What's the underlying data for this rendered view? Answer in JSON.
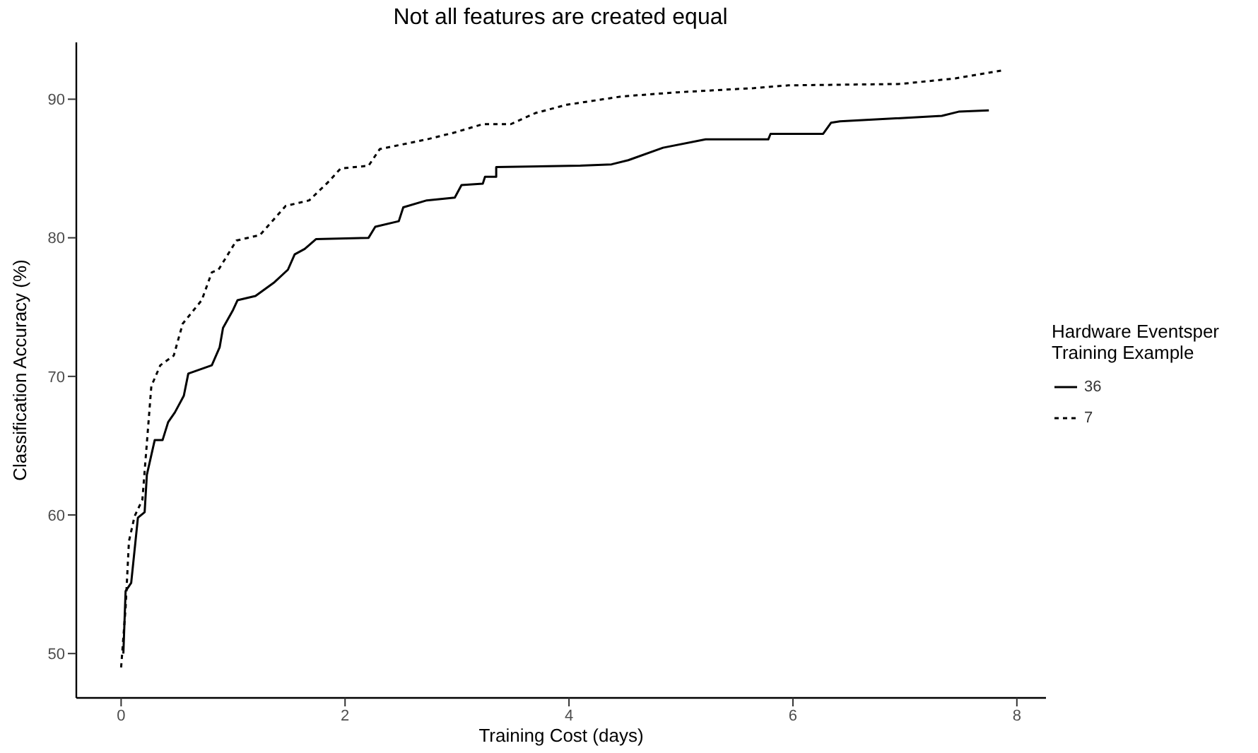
{
  "chart_data": {
    "type": "line",
    "title": "Not all features are created equal",
    "xlabel": "Training Cost (days)",
    "ylabel": "Classification Accuracy (%)",
    "legend_title": "Hardware Eventsper\nTraining Example",
    "legend": "right",
    "grid": false,
    "xlim": [
      -0.4,
      8.26
    ],
    "xticks": [
      0,
      2,
      4,
      6,
      8
    ],
    "ylim": [
      46.8,
      94.1
    ],
    "yticks": [
      50,
      60,
      70,
      80,
      90
    ],
    "series": [
      {
        "name": "36",
        "color": "#000000",
        "line_style": "solid",
        "x": [
          0.02,
          0.04,
          0.09,
          0.15,
          0.21,
          0.23,
          0.3,
          0.37,
          0.42,
          0.48,
          0.56,
          0.6,
          0.81,
          0.88,
          0.91,
          1.0,
          1.04,
          1.2,
          1.37,
          1.49,
          1.55,
          1.64,
          1.74,
          2.21,
          2.27,
          2.48,
          2.52,
          2.73,
          2.98,
          3.04,
          3.23,
          3.25,
          3.35,
          3.35,
          4.1,
          4.38,
          4.53,
          4.84,
          5.22,
          5.78,
          5.8,
          6.27,
          6.34,
          6.42,
          7.33,
          7.48,
          7.75
        ],
        "values": [
          50,
          54.5,
          55.1,
          59.8,
          60.2,
          62.9,
          65.4,
          65.4,
          66.7,
          67.4,
          68.6,
          70.2,
          70.8,
          72.1,
          73.5,
          74.8,
          75.5,
          75.8,
          76.8,
          77.7,
          78.8,
          79.2,
          79.9,
          80,
          80.8,
          81.2,
          82.2,
          82.7,
          82.9,
          83.8,
          83.9,
          84.4,
          84.4,
          85.1,
          85.2,
          85.3,
          85.6,
          86.5,
          87.1,
          87.1,
          87.5,
          87.5,
          88.3,
          88.4,
          88.8,
          89.1,
          89.2
        ]
      },
      {
        "name": "7",
        "color": "#000000",
        "line_style": "dotted",
        "x": [
          0,
          0.04,
          0.07,
          0.12,
          0.19,
          0.27,
          0.35,
          0.47,
          0.55,
          0.72,
          0.81,
          0.87,
          1.03,
          1.24,
          1.47,
          1.68,
          1.86,
          1.96,
          2.21,
          2.31,
          2.73,
          2.98,
          3.23,
          3.48,
          3.7,
          3.98,
          4.47,
          4.97,
          5.65,
          5.96,
          6.96,
          7.45,
          7.89
        ],
        "values": [
          49,
          53.3,
          58.1,
          59.9,
          61.1,
          69.3,
          70.8,
          71.5,
          73.8,
          75.5,
          77.5,
          77.7,
          79.8,
          80.2,
          82.3,
          82.7,
          84.1,
          85,
          85.2,
          86.4,
          87.1,
          87.6,
          88.2,
          88.2,
          89,
          89.6,
          90.2,
          90.5,
          90.8,
          91,
          91.1,
          91.5,
          92.1
        ]
      }
    ]
  }
}
